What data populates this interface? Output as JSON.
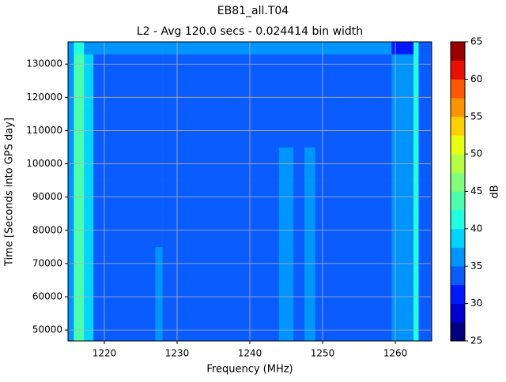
{
  "chart_data": {
    "type": "heatmap",
    "title": "EB81_all.T04",
    "subtitle": "L2 - Avg 120.0 secs - 0.024414 bin width",
    "x_label": "Frequency (MHz)",
    "y_label": "Time [Seconds into GPS day]",
    "colorbar_label": "dB",
    "xbins": [
      1215,
      1215.8,
      1217.2,
      1218.5,
      1227,
      1228,
      1244,
      1246,
      1247.5,
      1249,
      1259.5,
      1262.5,
      1263.2,
      1265
    ],
    "ybins": [
      46700,
      55000,
      65000,
      75000,
      85000,
      95000,
      105000,
      115000,
      125000,
      133000,
      136700
    ],
    "z": [
      [
        36,
        43,
        38,
        34,
        35,
        34,
        35,
        34,
        36,
        34,
        37,
        40,
        34
      ],
      [
        36,
        43,
        38,
        34,
        35,
        34,
        36,
        34,
        37,
        34,
        37,
        40,
        34
      ],
      [
        36,
        43,
        38,
        34,
        35,
        34,
        36,
        34,
        37,
        34,
        37,
        40,
        34
      ],
      [
        36,
        43,
        38,
        34,
        34,
        34,
        36,
        34,
        37,
        34,
        37,
        40,
        34
      ],
      [
        36,
        43,
        38,
        34,
        34,
        34,
        36,
        34,
        37,
        34,
        37,
        40,
        34
      ],
      [
        36,
        43,
        38,
        34,
        34,
        34,
        35,
        34,
        36,
        34,
        37,
        40,
        34
      ],
      [
        36,
        43,
        38,
        34,
        34,
        34,
        34,
        34,
        34,
        34,
        37,
        40,
        34
      ],
      [
        36,
        43,
        38,
        34,
        34,
        34,
        34,
        34,
        34,
        34,
        37,
        40,
        34
      ],
      [
        36,
        43,
        38,
        34,
        34,
        34,
        34,
        34,
        34,
        34,
        37,
        40,
        34
      ],
      [
        36,
        42,
        37,
        35,
        35,
        35,
        35,
        35,
        35,
        35,
        31,
        40,
        34
      ]
    ],
    "levels": [
      25,
      27.5,
      30,
      32.5,
      35,
      37.5,
      40,
      42.5,
      45,
      47.5,
      50,
      52.5,
      55,
      57.5,
      60,
      62.5,
      65
    ],
    "colors": [
      "#00007f",
      "#0000d0",
      "#0018ff",
      "#0a5cff",
      "#0094ff",
      "#00d4ff",
      "#22ffe0",
      "#4cffac",
      "#80ff7a",
      "#b4ff46",
      "#e8ff12",
      "#ffd000",
      "#ff9400",
      "#ff5800",
      "#e81000",
      "#9a0000"
    ],
    "xlim": [
      1215,
      1265
    ],
    "ylim": [
      46700,
      136700
    ],
    "clim": [
      25,
      65
    ],
    "xticks": [
      1220,
      1230,
      1240,
      1250,
      1260
    ],
    "yticks": [
      50000,
      60000,
      70000,
      80000,
      90000,
      100000,
      110000,
      120000,
      130000
    ],
    "cticks": [
      25,
      30,
      35,
      40,
      45,
      50,
      55,
      60,
      65
    ],
    "grid": true
  }
}
